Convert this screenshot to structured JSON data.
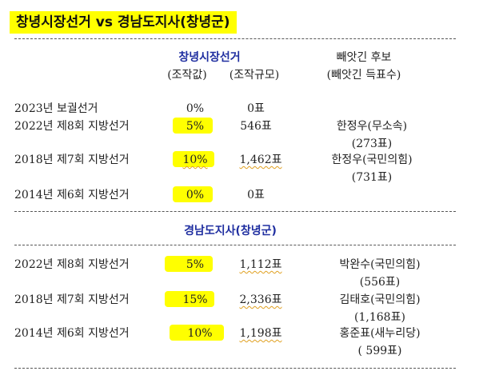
{
  "title": "창녕시장선거 vs 경남도지사(창녕군)",
  "section1": {
    "heading": "창녕시장선거",
    "col_rate": "(조작값)",
    "col_scale": "(조작규모)",
    "col_cand_1": "빼앗긴 후보",
    "col_cand_2": "(빼앗긴 득표수)",
    "rows": [
      {
        "election": "2023년 보궐선거",
        "rate": "0%",
        "scale": "0표",
        "cand": "",
        "votes": ""
      },
      {
        "election": "2022년 제8회 지방선거",
        "rate": "5%",
        "scale": "546표",
        "cand": "한정우(무소속)",
        "votes": "(273표)"
      },
      {
        "election": "2018년 제7회 지방선거",
        "rate": "10%",
        "scale": "1,462표",
        "cand": "한정우(국민의힘)",
        "votes": "(731표)"
      },
      {
        "election": "2014년 제6회 지방선거",
        "rate": "0%",
        "scale": "0표",
        "cand": "",
        "votes": ""
      }
    ]
  },
  "section2": {
    "heading": "경남도지사(창녕군)",
    "rows": [
      {
        "election": "2022년 제8회 지방선거",
        "rate": "5%",
        "scale": "1,112표",
        "cand": "박완수(국민의힘)",
        "votes": "(556표)"
      },
      {
        "election": "2018년 제7회 지방선거",
        "rate": "15%",
        "scale": "2,336표",
        "cand": "김태호(국민의힘)",
        "votes": "(1,168표)"
      },
      {
        "election": "2014년 제6회 지방선거",
        "rate": "10%",
        "scale": "1,198표",
        "cand": "홍준표(새누리당)",
        "votes": "( 599표)"
      }
    ]
  }
}
